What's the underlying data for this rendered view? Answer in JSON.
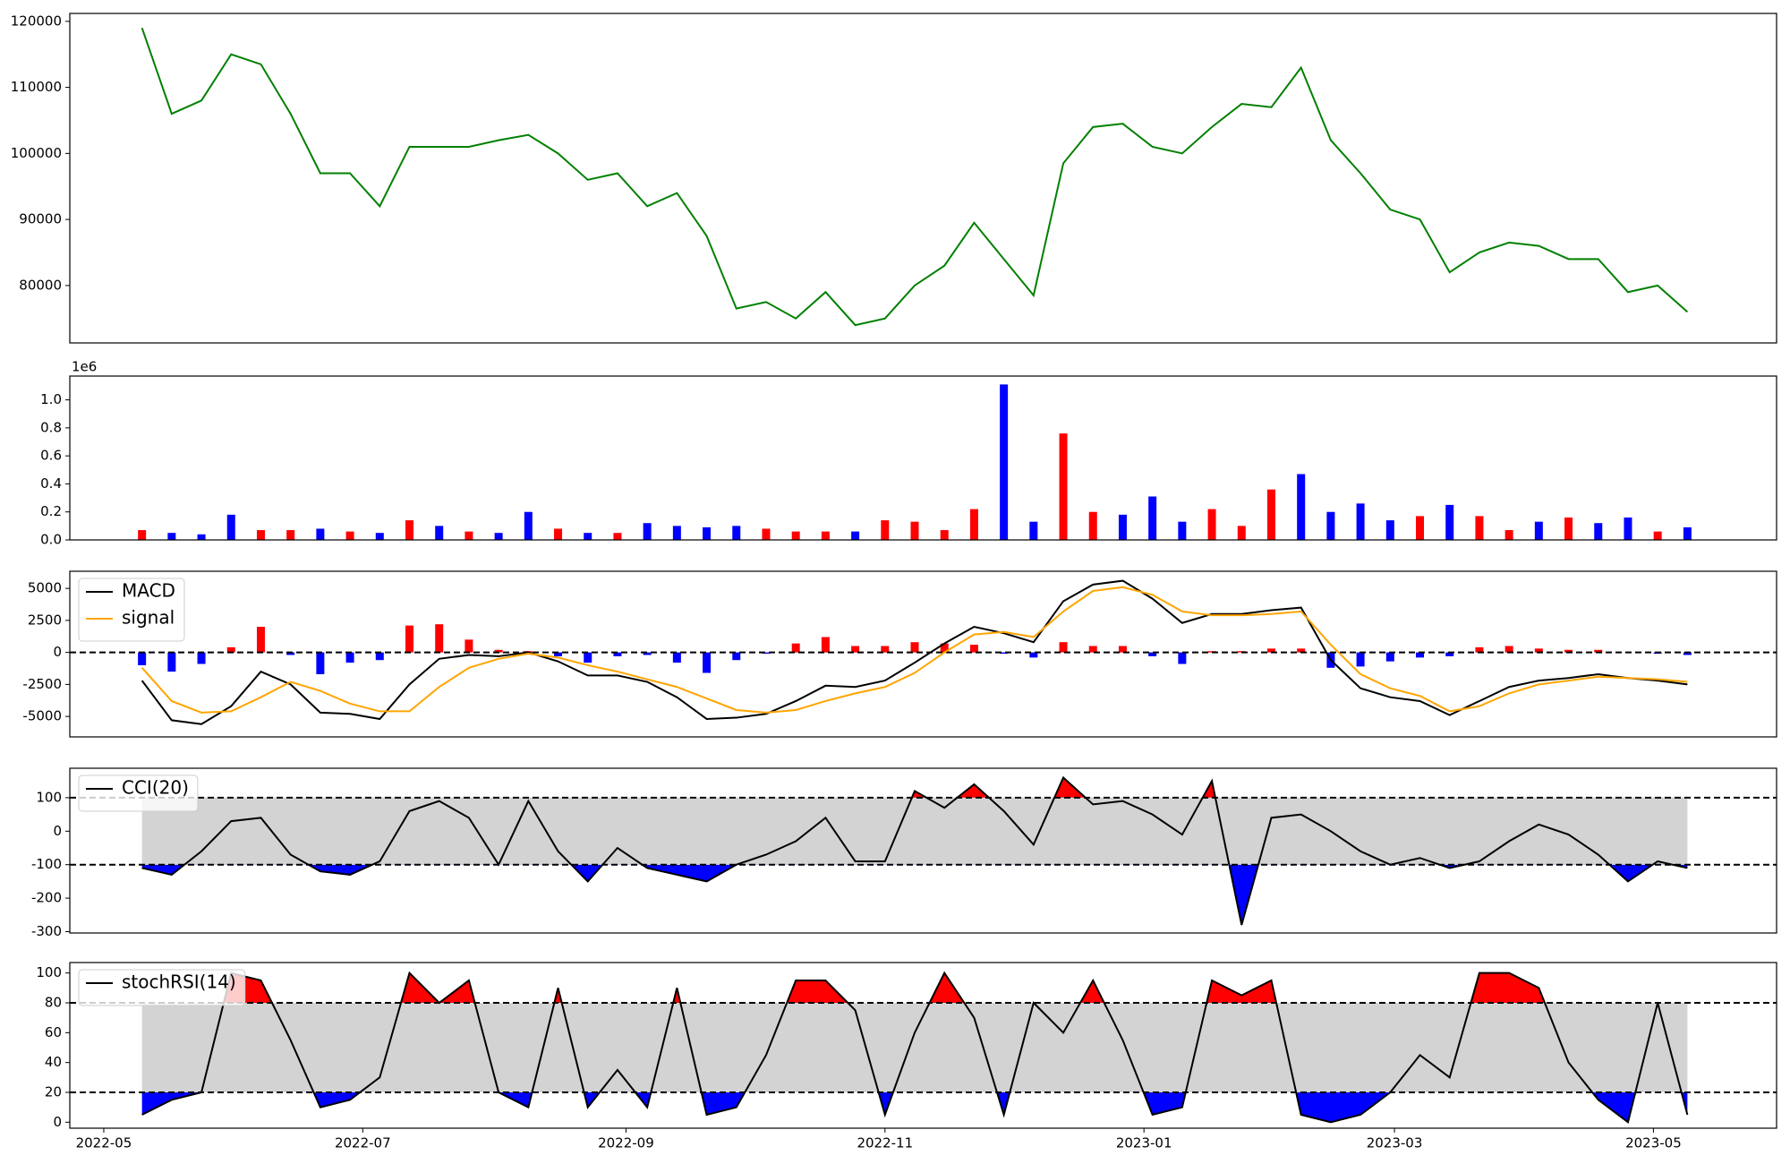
{
  "chart_data": [
    {
      "type": "line",
      "x": [
        "2022-05-10",
        "2022-05-17",
        "2022-05-24",
        "2022-05-31",
        "2022-06-07",
        "2022-06-14",
        "2022-06-21",
        "2022-06-28",
        "2022-07-05",
        "2022-07-12",
        "2022-07-19",
        "2022-07-26",
        "2022-08-02",
        "2022-08-09",
        "2022-08-16",
        "2022-08-23",
        "2022-08-30",
        "2022-09-06",
        "2022-09-13",
        "2022-09-20",
        "2022-09-27",
        "2022-10-04",
        "2022-10-11",
        "2022-10-18",
        "2022-10-25",
        "2022-11-01",
        "2022-11-08",
        "2022-11-15",
        "2022-11-22",
        "2022-11-29",
        "2022-12-06",
        "2022-12-13",
        "2022-12-20",
        "2022-12-27",
        "2023-01-03",
        "2023-01-10",
        "2023-01-17",
        "2023-01-24",
        "2023-01-31",
        "2023-02-07",
        "2023-02-14",
        "2023-02-21",
        "2023-02-28",
        "2023-03-07",
        "2023-03-14",
        "2023-03-21",
        "2023-03-28",
        "2023-04-04",
        "2023-04-11",
        "2023-04-18",
        "2023-04-25",
        "2023-05-02",
        "2023-05-09"
      ],
      "series": [
        {
          "color": "green",
          "values": [
            119000,
            106000,
            108000,
            115000,
            113500,
            106000,
            97000,
            97000,
            92000,
            101000,
            101000,
            101000,
            102000,
            102800,
            100000,
            96000,
            97000,
            92000,
            94000,
            87500,
            76500,
            77500,
            75000,
            79000,
            74000,
            75000,
            80000,
            83000,
            89500,
            84000,
            78500,
            98500,
            104000,
            104500,
            101000,
            100000,
            104000,
            107500,
            107000,
            113000,
            102000,
            97000,
            91500,
            90000,
            82000,
            85000,
            86500,
            86000,
            84000,
            84000,
            79000,
            80000,
            76000
          ]
        }
      ],
      "ylim": [
        71300,
        121200
      ],
      "yticks": [
        80000,
        90000,
        100000,
        110000,
        120000
      ]
    },
    {
      "type": "bar",
      "y_offset_label": "1e6",
      "values": [
        0.07,
        0.05,
        0.04,
        0.18,
        0.07,
        0.07,
        0.08,
        0.06,
        0.05,
        0.14,
        0.1,
        0.06,
        0.05,
        0.2,
        0.08,
        0.05,
        0.05,
        0.12,
        0.1,
        0.09,
        0.1,
        0.08,
        0.06,
        0.06,
        0.06,
        0.14,
        0.13,
        0.07,
        0.22,
        1.11,
        0.13,
        0.76,
        0.2,
        0.18,
        0.31,
        0.13,
        0.22,
        0.1,
        0.36,
        0.47,
        0.2,
        0.26,
        0.14,
        0.17,
        0.25,
        0.17,
        0.07,
        0.13,
        0.16,
        0.12,
        0.16,
        0.06,
        0.09
      ],
      "colors": [
        "red",
        "blue",
        "blue",
        "blue",
        "red",
        "red",
        "blue",
        "red",
        "blue",
        "red",
        "blue",
        "red",
        "blue",
        "blue",
        "red",
        "blue",
        "red",
        "blue",
        "blue",
        "blue",
        "blue",
        "red",
        "red",
        "red",
        "blue",
        "red",
        "red",
        "red",
        "red",
        "blue",
        "blue",
        "red",
        "red",
        "blue",
        "blue",
        "blue",
        "red",
        "red",
        "red",
        "blue",
        "blue",
        "blue",
        "blue",
        "red",
        "blue",
        "red",
        "red",
        "blue",
        "red",
        "blue",
        "blue",
        "red",
        "blue"
      ],
      "ylim": [
        0,
        1.17
      ],
      "yticks": [
        {
          "value": 0,
          "label": "0.0"
        },
        0.2,
        0.4,
        0.6,
        0.8,
        {
          "value": 1,
          "label": "1.0"
        }
      ]
    },
    {
      "type": "line",
      "legend": "upper left",
      "series": [
        {
          "name": "MACD",
          "color": "black",
          "values": [
            -2200,
            -5300,
            -5600,
            -4200,
            -1500,
            -2500,
            -4700,
            -4800,
            -5200,
            -2500,
            -500,
            -200,
            -300,
            0,
            -700,
            -1800,
            -1800,
            -2300,
            -3500,
            -5200,
            -5100,
            -4800,
            -3800,
            -2600,
            -2700,
            -2200,
            -800,
            700,
            2000,
            1500,
            800,
            4000,
            5300,
            5600,
            4200,
            2300,
            3000,
            3000,
            3300,
            3500,
            -600,
            -2800,
            -3500,
            -3800,
            -4900,
            -3800,
            -2700,
            -2200,
            -2000,
            -1700,
            -2000,
            -2200,
            -2500
          ]
        },
        {
          "name": "signal",
          "color": "orange",
          "values": [
            -1200,
            -3800,
            -4700,
            -4600,
            -3500,
            -2300,
            -3000,
            -4000,
            -4600,
            -4600,
            -2700,
            -1200,
            -500,
            -100,
            -400,
            -1000,
            -1500,
            -2100,
            -2700,
            -3600,
            -4500,
            -4700,
            -4500,
            -3800,
            -3200,
            -2700,
            -1600,
            0,
            1400,
            1600,
            1200,
            3200,
            4800,
            5100,
            4500,
            3200,
            2900,
            2900,
            3000,
            3200,
            600,
            -1700,
            -2800,
            -3400,
            -4600,
            -4200,
            -3200,
            -2500,
            -2200,
            -1900,
            -2000,
            -2100,
            -2300
          ]
        }
      ],
      "bars": {
        "up_color": "red",
        "down_color": "blue",
        "values": [
          -1000,
          -1500,
          -900,
          400,
          2000,
          -200,
          -1700,
          -800,
          -600,
          2100,
          2200,
          1000,
          200,
          100,
          -300,
          -800,
          -300,
          -200,
          -800,
          -1600,
          -600,
          -100,
          700,
          1200,
          500,
          500,
          800,
          700,
          600,
          -100,
          -400,
          800,
          500,
          500,
          -300,
          -900,
          100,
          100,
          300,
          300,
          -1200,
          -1100,
          -700,
          -400,
          -300,
          400,
          500,
          300,
          200,
          200,
          0,
          -100,
          -200
        ]
      },
      "hlines": [
        0
      ],
      "ylim": [
        -6600,
        6340
      ],
      "yticks": [
        -5000,
        -2500,
        0,
        2500,
        5000
      ]
    },
    {
      "type": "line",
      "legend": "upper left",
      "series": [
        {
          "name": "CCI(20)",
          "color": "black",
          "values": [
            -110,
            -130,
            -60,
            30,
            40,
            -70,
            -120,
            -130,
            -90,
            60,
            90,
            40,
            -100,
            90,
            -60,
            -150,
            -50,
            -110,
            -130,
            -150,
            -100,
            -70,
            -30,
            40,
            -90,
            -90,
            120,
            70,
            140,
            60,
            -40,
            160,
            80,
            90,
            50,
            -10,
            150,
            -280,
            40,
            50,
            0,
            -60,
            -100,
            -80,
            -110,
            -90,
            -30,
            20,
            -10,
            -70,
            -150,
            -90,
            -110
          ]
        }
      ],
      "hlines": [
        100,
        -100
      ],
      "fill": {
        "above": "red",
        "between": "lightgray",
        "below": "blue"
      },
      "ylim": [
        -304,
        188
      ],
      "yticks": [
        -300,
        -200,
        -100,
        0,
        100
      ]
    },
    {
      "type": "line",
      "legend": "upper left",
      "series": [
        {
          "name": "stochRSI(14)",
          "color": "black",
          "values": [
            5,
            15,
            20,
            100,
            95,
            55,
            10,
            15,
            30,
            100,
            80,
            95,
            20,
            10,
            90,
            10,
            35,
            10,
            90,
            5,
            10,
            45,
            95,
            95,
            75,
            5,
            60,
            100,
            70,
            5,
            80,
            60,
            95,
            55,
            5,
            10,
            95,
            85,
            95,
            5,
            0,
            5,
            20,
            45,
            30,
            100,
            100,
            90,
            40,
            15,
            0,
            80,
            5
          ]
        }
      ],
      "hlines": [
        80,
        20
      ],
      "fill": {
        "above": "red",
        "between": "lightgray",
        "below": "blue"
      },
      "ylim": [
        -4,
        107
      ],
      "yticks": [
        0,
        20,
        40,
        60,
        80,
        100
      ],
      "xlim": [
        "2022-04-23",
        "2023-05-30"
      ],
      "xticks": [
        "2022-05",
        "2022-07",
        "2022-09",
        "2022-11",
        "2023-01",
        "2023-03",
        "2023-05"
      ]
    }
  ]
}
